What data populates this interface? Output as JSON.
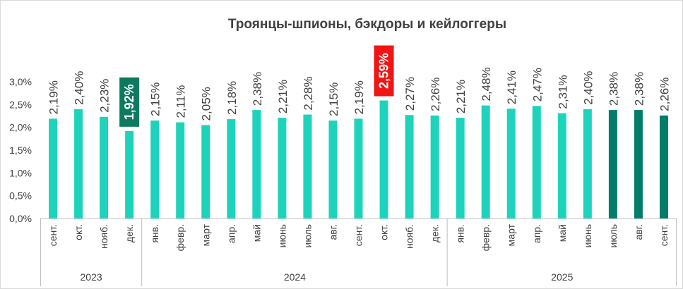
{
  "chart_data": {
    "type": "bar",
    "title": "Троянцы-шпионы, бэкдоры и кейлоггеры",
    "xlabel": "",
    "ylabel": "",
    "ylim": [
      0,
      3.0
    ],
    "y_ticks": [
      "0,0%",
      "0,5%",
      "1,0%",
      "1,5%",
      "2,0%",
      "2,5%",
      "3,0%"
    ],
    "grid": false,
    "categories": [
      "сент.",
      "окт.",
      "нояб.",
      "дек.",
      "янв.",
      "февр.",
      "март",
      "апр.",
      "май",
      "июнь",
      "июль",
      "авг.",
      "сент.",
      "окт.",
      "нояб.",
      "дек.",
      "янв.",
      "февр.",
      "март",
      "апр.",
      "май",
      "июнь",
      "июль",
      "авг.",
      "сент."
    ],
    "years": [
      {
        "label": "2023",
        "count": 4
      },
      {
        "label": "2024",
        "count": 12
      },
      {
        "label": "2025",
        "count": 9
      }
    ],
    "series": [
      {
        "values": [
          2.19,
          2.4,
          2.23,
          1.92,
          2.15,
          2.11,
          2.05,
          2.18,
          2.38,
          2.21,
          2.28,
          2.15,
          2.19,
          2.59,
          2.27,
          2.26,
          2.21,
          2.48,
          2.41,
          2.47,
          2.31,
          2.4,
          2.38,
          2.38,
          2.26
        ],
        "labels": [
          "2,19%",
          "2,40%",
          "2,23%",
          "1,92%",
          "2,15%",
          "2,11%",
          "2,05%",
          "2,18%",
          "2,38%",
          "2,21%",
          "2,28%",
          "2,15%",
          "2,19%",
          "2,59%",
          "2,27%",
          "2,26%",
          "2,21%",
          "2,48%",
          "2,41%",
          "2,47%",
          "2,31%",
          "2,40%",
          "2,38%",
          "2,38%",
          "2,26%"
        ]
      }
    ],
    "colors": {
      "bar": "#1ed3bc",
      "bar_recent": "#037d6a",
      "highlight_min_bg": "#0c7a5f",
      "highlight_max_bg": "#f01414",
      "text": "#404040",
      "axis": "#bfbfbf"
    },
    "dark_bar_indices": [
      22,
      23,
      24
    ],
    "highlight_min_index": 3,
    "highlight_max_index": 13
  }
}
